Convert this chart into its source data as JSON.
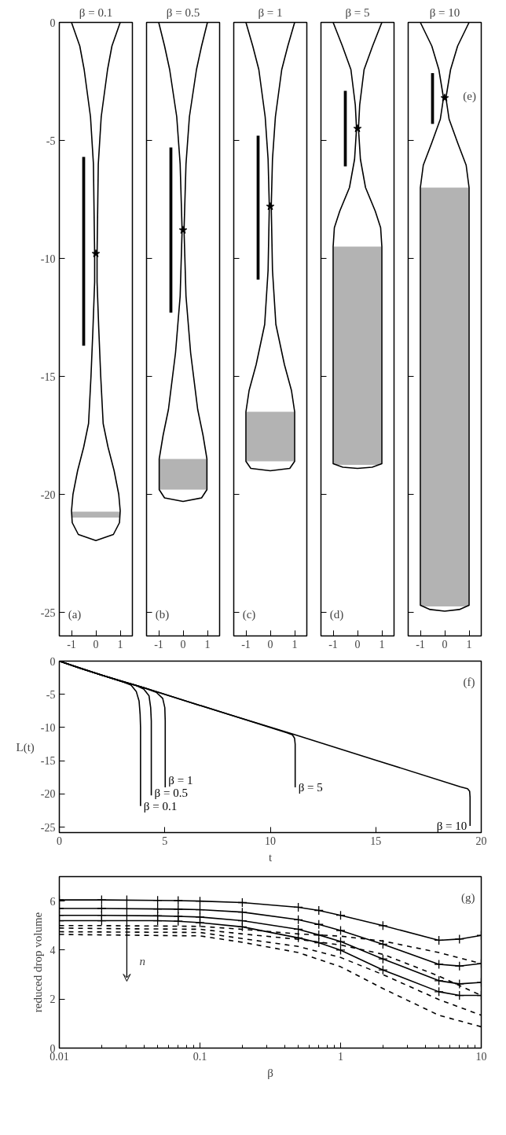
{
  "chart_data": [
    {
      "type": "line",
      "title": "β = 0.1",
      "xlim": [
        -1.5,
        1.5
      ],
      "ylim": [
        -26,
        0
      ],
      "xticks": [
        -1,
        0,
        1
      ],
      "yticks": [
        0,
        -5,
        -10,
        -15,
        -20,
        -25
      ],
      "annotations": [
        "(a)"
      ],
      "series": [
        {
          "type": "bar",
          "color": "#b3b3b3",
          "x": [
            0
          ],
          "base": [
            -20.98
          ],
          "values": [
            0.25
          ]
        },
        {
          "type": "line",
          "color": "#000000",
          "x": [
            -1,
            -0.66,
            -0.48,
            -0.22,
            -0.1,
            -0.05,
            -0.05,
            -0.12,
            -0.2,
            -0.3,
            -0.5,
            -0.75,
            -0.94,
            -1,
            -0.97,
            -0.72,
            0,
            0.72,
            0.97,
            1,
            0.94,
            0.75,
            0.5,
            0.3,
            0.2,
            0.12,
            0.05,
            0.05,
            0.1,
            0.22,
            0.48,
            0.66,
            1
          ],
          "values": [
            0,
            -1,
            -2,
            -4,
            -6,
            -9.8,
            -11,
            -13,
            -15,
            -17,
            -18,
            -19,
            -20,
            -20.7,
            -21.2,
            -21.7,
            -21.96,
            -21.7,
            -21.2,
            -20.7,
            -20,
            -19,
            -18,
            -17,
            -15,
            -13,
            -11,
            -9.8,
            -6,
            -4,
            -2,
            -1,
            0
          ]
        },
        {
          "type": "bar",
          "color": "#000000",
          "x": [
            -0.5
          ],
          "base": [
            -13.7
          ],
          "values": [
            8.0
          ]
        },
        {
          "type": "scatter",
          "marker": "star",
          "color": "#000000",
          "x": [
            0
          ],
          "values": [
            -9.8
          ]
        }
      ]
    },
    {
      "type": "line",
      "title": "β = 0.5",
      "xlim": [
        -1.5,
        1.5
      ],
      "ylim": [
        -26,
        0
      ],
      "xticks": [
        -1,
        0,
        1
      ],
      "yticks": [
        0,
        -5,
        -10,
        -15,
        -20,
        -25
      ],
      "tick_labels": "x",
      "annotations": [
        "(b)"
      ],
      "series": [
        {
          "type": "bar",
          "color": "#b3b3b3",
          "x": [
            0
          ],
          "base": [
            -19.8
          ],
          "values": [
            1.3
          ]
        },
        {
          "type": "line",
          "color": "#000000",
          "x": [
            -1,
            -0.76,
            -0.55,
            -0.26,
            -0.12,
            -0.04,
            -0.12,
            -0.31,
            -0.6,
            -0.82,
            -0.98,
            -0.98,
            -0.76,
            0,
            0.76,
            0.98,
            0.98,
            0.82,
            0.6,
            0.31,
            0.12,
            0.04,
            0.12,
            0.26,
            0.55,
            0.76,
            1
          ],
          "values": [
            0,
            -1,
            -2,
            -4,
            -6,
            -8.8,
            -11.6,
            -14,
            -16.4,
            -17.5,
            -18.5,
            -19.8,
            -20.15,
            -20.3,
            -20.15,
            -19.8,
            -18.5,
            -17.5,
            -16.4,
            -14,
            -11.6,
            -8.8,
            -6,
            -4,
            -2,
            -1,
            0
          ]
        },
        {
          "type": "bar",
          "color": "#000000",
          "x": [
            -0.5
          ],
          "base": [
            -12.3
          ],
          "values": [
            7.0
          ]
        },
        {
          "type": "scatter",
          "marker": "star",
          "color": "#000000",
          "x": [
            0
          ],
          "values": [
            -8.8
          ]
        }
      ]
    },
    {
      "type": "line",
      "title": "β = 1",
      "xlim": [
        -1.5,
        1.5
      ],
      "ylim": [
        -26,
        0
      ],
      "xticks": [
        -1,
        0,
        1
      ],
      "yticks": [
        0,
        -5,
        -10,
        -15,
        -20,
        -25
      ],
      "tick_labels": "x",
      "annotations": [
        "(c)"
      ],
      "series": [
        {
          "type": "bar",
          "color": "#b3b3b3",
          "x": [
            0
          ],
          "base": [
            -18.6
          ],
          "values": [
            2.1
          ]
        },
        {
          "type": "line",
          "color": "#000000",
          "x": [
            -1,
            -0.72,
            -0.47,
            -0.21,
            -0.09,
            -0.04,
            -0.09,
            -0.23,
            -0.58,
            -0.87,
            -1,
            -1,
            -0.8,
            0,
            0.8,
            1,
            1,
            0.87,
            0.58,
            0.23,
            0.09,
            0.04,
            0.09,
            0.21,
            0.47,
            0.72,
            1
          ],
          "values": [
            0,
            -1,
            -2,
            -4,
            -5.8,
            -7.8,
            -10.5,
            -12.8,
            -14.5,
            -15.6,
            -16.5,
            -18.6,
            -18.9,
            -19,
            -18.9,
            -18.6,
            -16.5,
            -15.6,
            -14.5,
            -12.8,
            -10.5,
            -7.8,
            -5.8,
            -4,
            -2,
            -1,
            0
          ]
        },
        {
          "type": "bar",
          "color": "#000000",
          "x": [
            -0.5
          ],
          "base": [
            -10.9
          ],
          "values": [
            6.1
          ]
        },
        {
          "type": "scatter",
          "marker": "star",
          "color": "#000000",
          "x": [
            0
          ],
          "values": [
            -7.8
          ]
        }
      ]
    },
    {
      "type": "line",
      "title": "β = 5",
      "xlim": [
        -1.5,
        1.5
      ],
      "ylim": [
        -26,
        0
      ],
      "xticks": [
        -1,
        0,
        1
      ],
      "yticks": [
        0,
        -5,
        -10,
        -15,
        -20,
        -25
      ],
      "tick_labels": "x",
      "annotations": [
        "(d)"
      ],
      "series": [
        {
          "type": "bar",
          "color": "#b3b3b3",
          "x": [
            0
          ],
          "base": [
            -18.75
          ],
          "values": [
            9.25
          ]
        },
        {
          "type": "line",
          "color": "#000000",
          "x": [
            -1,
            -0.62,
            -0.27,
            -0.09,
            -0.04,
            -0.12,
            -0.33,
            -0.73,
            -0.95,
            -1,
            -1,
            -0.6,
            0,
            0.6,
            1,
            1,
            0.95,
            0.73,
            0.33,
            0.12,
            0.04,
            0.09,
            0.27,
            0.62,
            1
          ],
          "values": [
            0,
            -1,
            -2,
            -3.5,
            -4.5,
            -5.8,
            -7,
            -8,
            -8.7,
            -9.5,
            -18.7,
            -18.85,
            -18.9,
            -18.85,
            -18.7,
            -9.5,
            -8.7,
            -8,
            -7,
            -5.8,
            -4.5,
            -3.5,
            -2,
            -1,
            0
          ]
        },
        {
          "type": "bar",
          "color": "#000000",
          "x": [
            -0.5
          ],
          "base": [
            -6.1
          ],
          "values": [
            3.2
          ]
        },
        {
          "type": "scatter",
          "marker": "star",
          "color": "#000000",
          "x": [
            0
          ],
          "values": [
            -4.5
          ]
        }
      ]
    },
    {
      "type": "line",
      "title": "β = 10",
      "xlim": [
        -1.5,
        1.5
      ],
      "ylim": [
        -26,
        0
      ],
      "xticks": [
        -1,
        0,
        1
      ],
      "yticks": [
        0,
        -5,
        -10,
        -15,
        -20,
        -25
      ],
      "tick_labels": "x",
      "annotations": [
        "(e)"
      ],
      "series": [
        {
          "type": "bar",
          "color": "#b3b3b3",
          "x": [
            0
          ],
          "base": [
            -24.75
          ],
          "values": [
            17.75
          ]
        },
        {
          "type": "line",
          "color": "#000000",
          "x": [
            -1,
            -0.53,
            -0.24,
            -0.05,
            -0.18,
            -0.53,
            -0.88,
            -1,
            -1,
            -0.6,
            0,
            0.6,
            1,
            1,
            0.88,
            0.53,
            0.18,
            0.05,
            0.24,
            0.53,
            1
          ],
          "values": [
            0,
            -1,
            -2,
            -3.2,
            -4.1,
            -5.1,
            -6.05,
            -7,
            -24.7,
            -24.88,
            -24.95,
            -24.88,
            -24.7,
            -7,
            -6.05,
            -5.1,
            -4.1,
            -3.2,
            -2,
            -1,
            0
          ]
        },
        {
          "type": "bar",
          "color": "#000000",
          "x": [
            -0.5
          ],
          "base": [
            -4.3
          ],
          "values": [
            2.15
          ]
        },
        {
          "type": "scatter",
          "marker": "star",
          "color": "#000000",
          "x": [
            0
          ],
          "values": [
            -3.2
          ]
        }
      ]
    },
    {
      "type": "line",
      "xlabel": "t",
      "ylabel": "L(t)",
      "xlim": [
        0,
        20
      ],
      "ylim": [
        -25.8,
        0
      ],
      "xticks": [
        0,
        5,
        10,
        15,
        20
      ],
      "yticks": [
        0,
        -5,
        -10,
        -15,
        -20,
        -25
      ],
      "annotations": [
        "(f)"
      ],
      "series": [
        {
          "name": "β = 0.1",
          "color": "#000000",
          "x": [
            0,
            1,
            2,
            3,
            3.4,
            3.65,
            3.78,
            3.83,
            3.85,
            3.85
          ],
          "values": [
            0,
            -1.1,
            -2.1,
            -3.1,
            -3.6,
            -4.6,
            -6,
            -8,
            -10,
            -21.8
          ]
        },
        {
          "name": "β = 0.5",
          "color": "#000000",
          "x": [
            0,
            1,
            2,
            3,
            3.6,
            4.0,
            4.25,
            4.33,
            4.36,
            4.36
          ],
          "values": [
            0,
            -1.1,
            -2.1,
            -3.1,
            -3.6,
            -4.2,
            -5.2,
            -7,
            -9,
            -20.2
          ]
        },
        {
          "name": "β = 1",
          "color": "#000000",
          "x": [
            0,
            1,
            2,
            3,
            4,
            4.6,
            4.9,
            5.0,
            5.02,
            5.02
          ],
          "values": [
            0,
            -1.1,
            -2.1,
            -3.1,
            -4.0,
            -4.7,
            -5.6,
            -7,
            -9,
            -19.0
          ]
        },
        {
          "name": "β = 5",
          "color": "#000000",
          "x": [
            0,
            2,
            4,
            6,
            8,
            10.8,
            11.05,
            11.15,
            11.18,
            11.18
          ],
          "values": [
            0,
            -2.1,
            -4.0,
            -6.0,
            -8.0,
            -10.8,
            -11.1,
            -11.6,
            -12.5,
            -19.0
          ]
        },
        {
          "name": "β = 10",
          "color": "#000000",
          "x": [
            0,
            2,
            4,
            6,
            8,
            11.1,
            15,
            19,
            19.35,
            19.45,
            19.47,
            19.47
          ],
          "values": [
            0,
            -2.1,
            -4.0,
            -6.0,
            -8.0,
            -11.0,
            -14.9,
            -18.9,
            -19.2,
            -19.6,
            -20.5,
            -24.8
          ]
        }
      ]
    },
    {
      "type": "line",
      "log": "x",
      "xlabel": "β",
      "ylabel": "reduced drop volume",
      "xlim": [
        0.01,
        10
      ],
      "ylim": [
        0,
        7
      ],
      "xticks": [
        0.01,
        0.1,
        1,
        10
      ],
      "yticks": [
        0,
        2,
        4,
        6
      ],
      "annotations": [
        "(g)",
        "n"
      ],
      "series": [
        {
          "color": "#000000",
          "line_style": "solid",
          "marker": "cross",
          "x": [
            0.01,
            0.02,
            0.05,
            0.07,
            0.1,
            0.2,
            0.5,
            0.7,
            1,
            2,
            5,
            7,
            10
          ],
          "values": [
            6.05,
            6.05,
            6.03,
            6.02,
            6.0,
            5.94,
            5.75,
            5.62,
            5.42,
            5.0,
            4.4,
            4.45,
            4.6
          ]
        },
        {
          "color": "#000000",
          "line_style": "solid",
          "marker": "cross",
          "x": [
            0.01,
            0.02,
            0.05,
            0.07,
            0.1,
            0.2,
            0.5,
            0.7,
            1,
            2,
            5,
            7,
            10
          ],
          "values": [
            5.7,
            5.7,
            5.68,
            5.67,
            5.65,
            5.55,
            5.24,
            5.05,
            4.8,
            4.24,
            3.42,
            3.35,
            3.45
          ]
        },
        {
          "color": "#000000",
          "line_style": "solid",
          "marker": "cross",
          "x": [
            0.01,
            0.02,
            0.05,
            0.07,
            0.1,
            0.2,
            0.5,
            0.7,
            1,
            2,
            5,
            7,
            10
          ],
          "values": [
            5.42,
            5.42,
            5.4,
            5.38,
            5.35,
            5.2,
            4.85,
            4.62,
            4.35,
            3.64,
            2.75,
            2.62,
            2.68
          ]
        },
        {
          "color": "#000000",
          "line_style": "solid",
          "marker": "cross",
          "x": [
            0.01,
            0.02,
            0.05,
            0.07,
            0.1,
            0.2,
            0.5,
            0.7,
            1,
            2,
            5,
            7,
            10
          ],
          "values": [
            5.2,
            5.2,
            5.2,
            5.18,
            5.12,
            4.95,
            4.5,
            4.3,
            4.0,
            3.19,
            2.3,
            2.15,
            2.15
          ]
        },
        {
          "color": "#000000",
          "line_style": "dashed",
          "x": [
            0.01,
            0.02,
            0.1,
            0.2,
            0.5,
            1,
            2,
            5,
            10
          ],
          "values": [
            5.0,
            5.0,
            4.97,
            4.85,
            4.66,
            4.57,
            4.37,
            3.9,
            3.45
          ]
        },
        {
          "color": "#000000",
          "line_style": "dashed",
          "x": [
            0.01,
            0.02,
            0.1,
            0.2,
            0.5,
            1,
            2,
            5,
            10
          ],
          "values": [
            4.9,
            4.88,
            4.85,
            4.66,
            4.44,
            4.21,
            3.83,
            2.94,
            2.15
          ]
        },
        {
          "color": "#000000",
          "line_style": "dashed",
          "x": [
            0.01,
            0.02,
            0.1,
            0.2,
            0.5,
            1,
            2,
            5,
            10
          ],
          "values": [
            4.75,
            4.74,
            4.72,
            4.47,
            4.15,
            3.7,
            3.0,
            1.98,
            1.34
          ]
        },
        {
          "color": "#000000",
          "line_style": "dashed",
          "x": [
            0.01,
            0.02,
            0.1,
            0.2,
            0.5,
            1,
            2,
            5,
            10
          ],
          "values": [
            4.64,
            4.62,
            4.58,
            4.32,
            3.9,
            3.32,
            2.43,
            1.34,
            0.87
          ]
        }
      ]
    }
  ]
}
